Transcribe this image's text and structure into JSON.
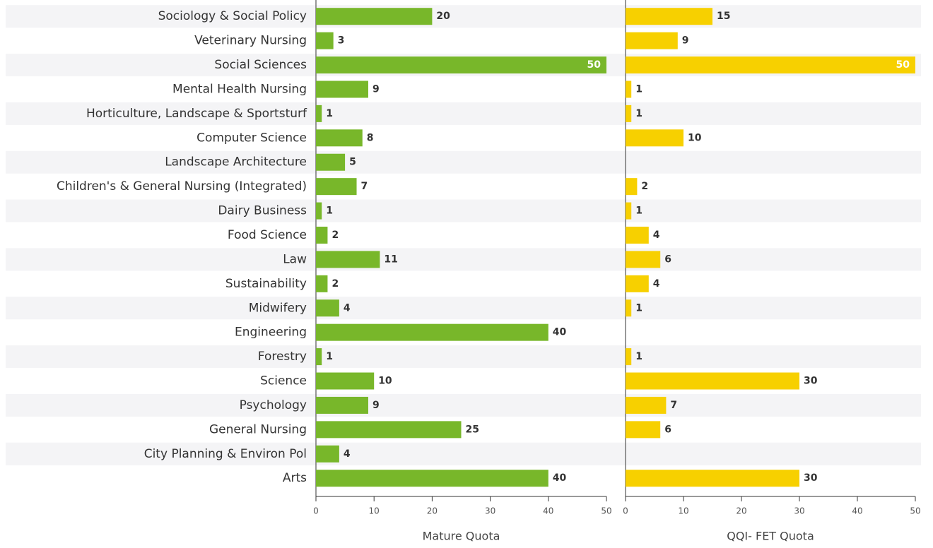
{
  "chart_data": [
    {
      "type": "bar",
      "orientation": "horizontal",
      "categories": [
        "Sociology & Social Policy",
        "Veterinary Nursing",
        "Social Sciences",
        "Mental Health Nursing",
        "Horticulture, Landscape & Sportsturf",
        "Computer Science",
        "Landscape Architecture",
        "Children's & General Nursing (Integrated)",
        "Dairy Business",
        "Food Science",
        "Law",
        "Sustainability",
        "Midwifery",
        "Engineering",
        "Forestry",
        "Science",
        "Psychology",
        "General Nursing",
        "City Planning & Environ Pol",
        "Arts"
      ],
      "values": [
        20,
        3,
        50,
        9,
        1,
        8,
        5,
        7,
        1,
        2,
        11,
        2,
        4,
        40,
        1,
        10,
        9,
        25,
        4,
        40
      ],
      "color": "#78b72a",
      "xlim": [
        0,
        50
      ],
      "xticks": [
        0,
        10,
        20,
        30,
        40,
        50
      ],
      "xlabel": "Mature Quota"
    },
    {
      "type": "bar",
      "orientation": "horizontal",
      "values": [
        15,
        9,
        50,
        1,
        1,
        10,
        null,
        2,
        1,
        4,
        6,
        4,
        1,
        null,
        1,
        30,
        7,
        6,
        null,
        30
      ],
      "color": "#f7d000",
      "xlim": [
        0,
        50
      ],
      "xticks": [
        0,
        10,
        20,
        30,
        40,
        50
      ],
      "xlabel": "QQI- FET Quota"
    }
  ]
}
